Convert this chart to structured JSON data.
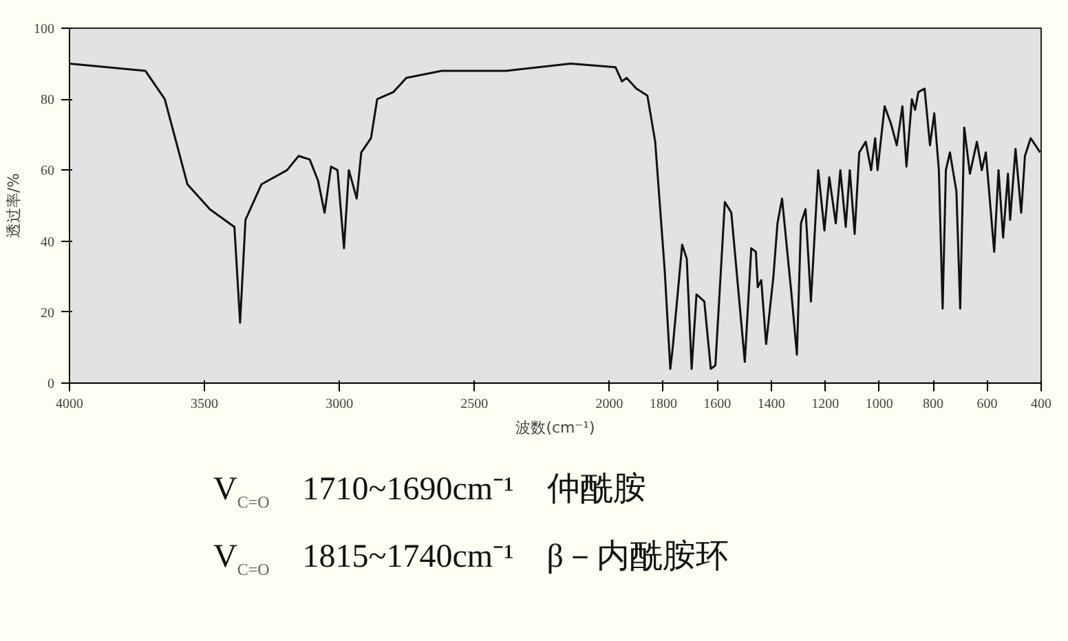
{
  "chart_data": {
    "type": "line",
    "xlabel": "波数(cm⁻¹)",
    "ylabel": "透过率/%",
    "xlim": [
      4000,
      400
    ],
    "xticks": [
      4000,
      3500,
      3000,
      2500,
      2000,
      1800,
      1600,
      1400,
      1200,
      1000,
      800,
      600,
      400
    ],
    "ylim": [
      0,
      100
    ],
    "yticks": [
      0,
      20,
      40,
      60,
      80,
      100
    ],
    "series": [
      {
        "color": "#111111",
        "x": [
          4000,
          3719,
          3647,
          3563,
          3480,
          3389,
          3368,
          3348,
          3289,
          3194,
          3151,
          3110,
          3079,
          3055,
          3031,
          3007,
          2983,
          2965,
          2936,
          2919,
          2883,
          2860,
          2800,
          2752,
          2621,
          2382,
          2143,
          1977,
          1953,
          1936,
          1900,
          1859,
          1830,
          1795,
          1774,
          1765,
          1730,
          1713,
          1695,
          1677,
          1648,
          1624,
          1607,
          1572,
          1548,
          1498,
          1474,
          1457,
          1450,
          1437,
          1419,
          1392,
          1377,
          1360,
          1325,
          1305,
          1290,
          1273,
          1253,
          1226,
          1203,
          1185,
          1161,
          1144,
          1124,
          1109,
          1091,
          1074,
          1050,
          1030,
          1015,
          1006,
          980,
          956,
          935,
          914,
          899,
          879,
          867,
          855,
          832,
          812,
          796,
          779,
          765,
          753,
          738,
          714,
          700,
          685,
          664,
          638,
          620,
          605,
          574,
          558,
          541,
          523,
          515,
          495,
          474,
          460,
          439,
          421,
          404
        ],
        "values": [
          90,
          88,
          80,
          56,
          49,
          44,
          17,
          46,
          56,
          60,
          64,
          63,
          57,
          48,
          61,
          60,
          38,
          60,
          52,
          65,
          69,
          80,
          82,
          86,
          88,
          88,
          90,
          89,
          85,
          86,
          83,
          81,
          68,
          32,
          4,
          10,
          39,
          35,
          4,
          25,
          23,
          4,
          5,
          51,
          48,
          6,
          38,
          37,
          27,
          29,
          11,
          30,
          45,
          52,
          25,
          8,
          45,
          49,
          23,
          60,
          43,
          58,
          45,
          60,
          44,
          60,
          42,
          65,
          68,
          60,
          69,
          60,
          78,
          73,
          67,
          78,
          61,
          80,
          77,
          82,
          83,
          67,
          76,
          60,
          21,
          60,
          65,
          54,
          21,
          72,
          59,
          68,
          60,
          65,
          37,
          60,
          41,
          59,
          46,
          66,
          48,
          64,
          69,
          67,
          65
        ]
      }
    ],
    "annotations": [
      "V$_{C=O}$ 1710~1690cm⁻¹ 仲酰胺",
      "V$_{C=O}$ 1815~1740cm⁻¹ β－内酰胺环"
    ]
  }
}
